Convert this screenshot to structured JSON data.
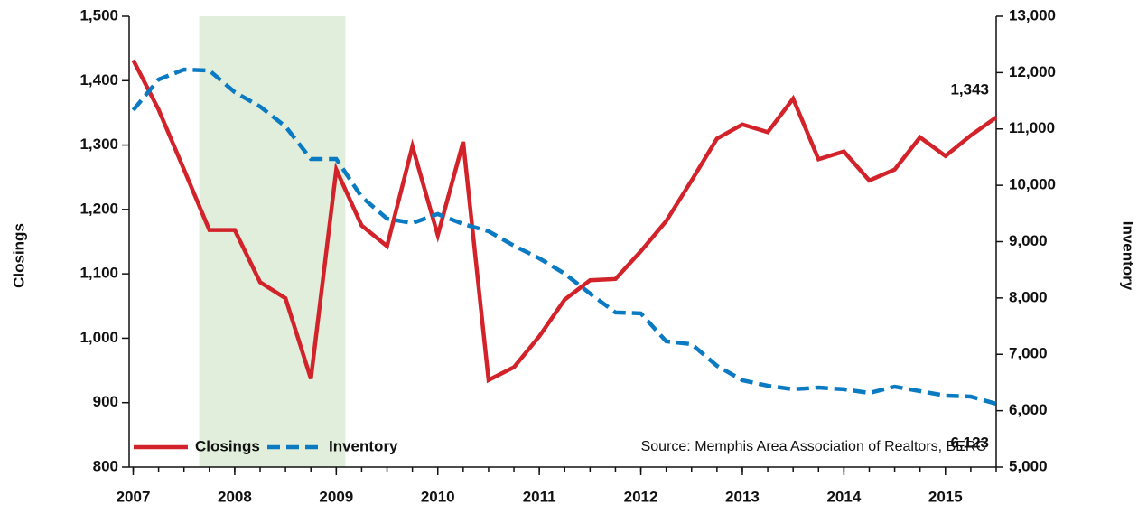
{
  "chart_data": {
    "type": "line",
    "y_axis_label": "Closings",
    "y2_axis_label": "Inventory",
    "source": "Source: Memphis Area Association of Realtors, BERC",
    "shade": [
      2007.65,
      2009.09
    ],
    "shade_color": "#e0eedb",
    "x": [
      2007,
      2007.25,
      2007.5,
      2007.75,
      2008,
      2008.25,
      2008.5,
      2008.75,
      2009,
      2009.25,
      2009.5,
      2009.75,
      2010,
      2010.25,
      2010.5,
      2010.75,
      2011,
      2011.25,
      2011.5,
      2011.75,
      2012,
      2012.25,
      2012.5,
      2012.75,
      2013,
      2013.25,
      2013.5,
      2013.75,
      2014,
      2014.25,
      2014.5,
      2014.75,
      2015,
      2015.25,
      2015.5
    ],
    "xlim": [
      2006.96,
      2015.5
    ],
    "xticks": [
      2007,
      2008,
      2009,
      2010,
      2011,
      2012,
      2013,
      2014,
      2015
    ],
    "ylim": [
      800,
      1500
    ],
    "yticks": [
      {
        "value": 800,
        "label": "800"
      },
      {
        "value": 900,
        "label": "900"
      },
      {
        "value": 1000,
        "label": "1,000"
      },
      {
        "value": 1100,
        "label": "1,100"
      },
      {
        "value": 1200,
        "label": "1,200"
      },
      {
        "value": 1300,
        "label": "1,300"
      },
      {
        "value": 1400,
        "label": "1,400"
      },
      {
        "value": 1500,
        "label": "1,500"
      }
    ],
    "y2lim": [
      5000,
      13000
    ],
    "y2ticks": [
      {
        "value": 5000,
        "label": "5,000"
      },
      {
        "value": 6000,
        "label": "6,000"
      },
      {
        "value": 7000,
        "label": "7,000"
      },
      {
        "value": 8000,
        "label": "8,000"
      },
      {
        "value": 9000,
        "label": "9,000"
      },
      {
        "value": 10000,
        "label": "10,000"
      },
      {
        "value": 11000,
        "label": "11,000"
      },
      {
        "value": 12000,
        "label": "12,000"
      },
      {
        "value": 13000,
        "label": "13,000"
      }
    ],
    "series": [
      {
        "name": "Closings",
        "color": "#d2232a",
        "dashed": false,
        "values": [
          1432,
          1355,
          1262,
          1168,
          1168,
          1087,
          1062,
          937,
          1262,
          1175,
          1143,
          1298,
          1160,
          1305,
          935,
          955,
          1003,
          1060,
          1090,
          1092,
          1135,
          1182,
          1245,
          1310,
          1332,
          1320,
          1372,
          1278,
          1290,
          1245,
          1262,
          1312,
          1283,
          1315,
          1343
        ],
        "value_labels": [
          null,
          null,
          null,
          null,
          null,
          null,
          null,
          null,
          null,
          null,
          null,
          null,
          null,
          null,
          null,
          null,
          null,
          null,
          null,
          null,
          null,
          null,
          null,
          null,
          null,
          null,
          null,
          null,
          null,
          null,
          null,
          null,
          null,
          null,
          "1,343"
        ]
      },
      {
        "name": "Inventory",
        "color": "#0a7ac2",
        "dashed": true,
        "axis": "y2",
        "values": [
          11333,
          11878,
          12054,
          12038,
          11653,
          11397,
          11044,
          10467,
          10467,
          9794,
          9409,
          9329,
          9490,
          9313,
          9184,
          8928,
          8703,
          8431,
          8078,
          7743,
          7727,
          7230,
          7180,
          6796,
          6540,
          6443,
          6380,
          6410,
          6380,
          6315,
          6427,
          6347,
          6267,
          6250,
          6123
        ],
        "value_labels": [
          null,
          null,
          null,
          null,
          null,
          null,
          null,
          null,
          null,
          null,
          null,
          null,
          null,
          null,
          null,
          null,
          null,
          null,
          null,
          null,
          null,
          null,
          null,
          null,
          null,
          null,
          null,
          null,
          null,
          null,
          null,
          null,
          null,
          null,
          "6,123"
        ]
      }
    ]
  }
}
